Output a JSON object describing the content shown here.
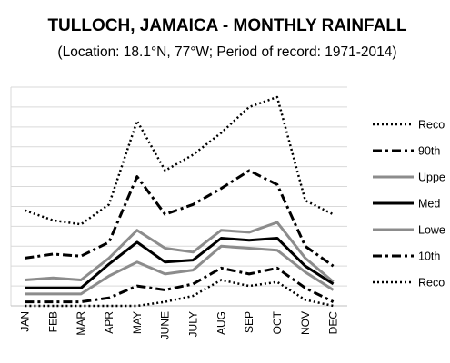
{
  "chart_data": {
    "type": "line",
    "title": "TULLOCH, JAMAICA - MONTHLY RAINFALL",
    "subtitle": "(Location: 18.1°N, 77°W; Period of record: 1971-2014)",
    "categories": [
      "JAN",
      "FEB",
      "MAR",
      "APR",
      "MAY",
      "JUNE",
      "JULY",
      "AUG",
      "SEP",
      "OCT",
      "NOV",
      "DEC"
    ],
    "ylim": [
      0,
      11
    ],
    "grid": true,
    "legend_position": "right",
    "series": [
      {
        "name": "Reco",
        "style": "dotted",
        "color": "#000000",
        "width": 2.5,
        "values": [
          4.8,
          4.3,
          4.1,
          5.1,
          9.3,
          6.8,
          7.6,
          8.7,
          10.0,
          10.5,
          5.3,
          4.6
        ]
      },
      {
        "name": "90th",
        "style": "dashdot",
        "color": "#000000",
        "width": 3,
        "values": [
          2.4,
          2.6,
          2.5,
          3.2,
          6.5,
          4.6,
          5.1,
          5.9,
          6.8,
          6.1,
          3.0,
          2.0
        ]
      },
      {
        "name": "Uppe",
        "style": "solid",
        "color": "#8c8c8c",
        "width": 3,
        "values": [
          1.3,
          1.4,
          1.3,
          2.4,
          3.8,
          2.9,
          2.7,
          3.8,
          3.7,
          4.2,
          2.4,
          1.2
        ]
      },
      {
        "name": "Med",
        "style": "solid",
        "color": "#000000",
        "width": 3,
        "values": [
          0.9,
          0.9,
          0.9,
          2.1,
          3.2,
          2.2,
          2.3,
          3.4,
          3.3,
          3.4,
          2.0,
          1.1
        ]
      },
      {
        "name": "Lowe",
        "style": "solid",
        "color": "#8c8c8c",
        "width": 3,
        "values": [
          0.6,
          0.6,
          0.6,
          1.5,
          2.2,
          1.6,
          1.8,
          3.0,
          2.9,
          2.8,
          1.7,
          0.8
        ]
      },
      {
        "name": "10th",
        "style": "dashdot",
        "color": "#000000",
        "width": 3,
        "values": [
          0.2,
          0.2,
          0.2,
          0.4,
          1.0,
          0.8,
          1.1,
          1.9,
          1.6,
          1.9,
          0.9,
          0.2
        ]
      },
      {
        "name": "Reco",
        "style": "dotted",
        "color": "#000000",
        "width": 2.5,
        "values": [
          0.0,
          0.0,
          0.0,
          0.0,
          0.0,
          0.2,
          0.5,
          1.3,
          1.0,
          1.2,
          0.3,
          0.0
        ]
      }
    ]
  }
}
